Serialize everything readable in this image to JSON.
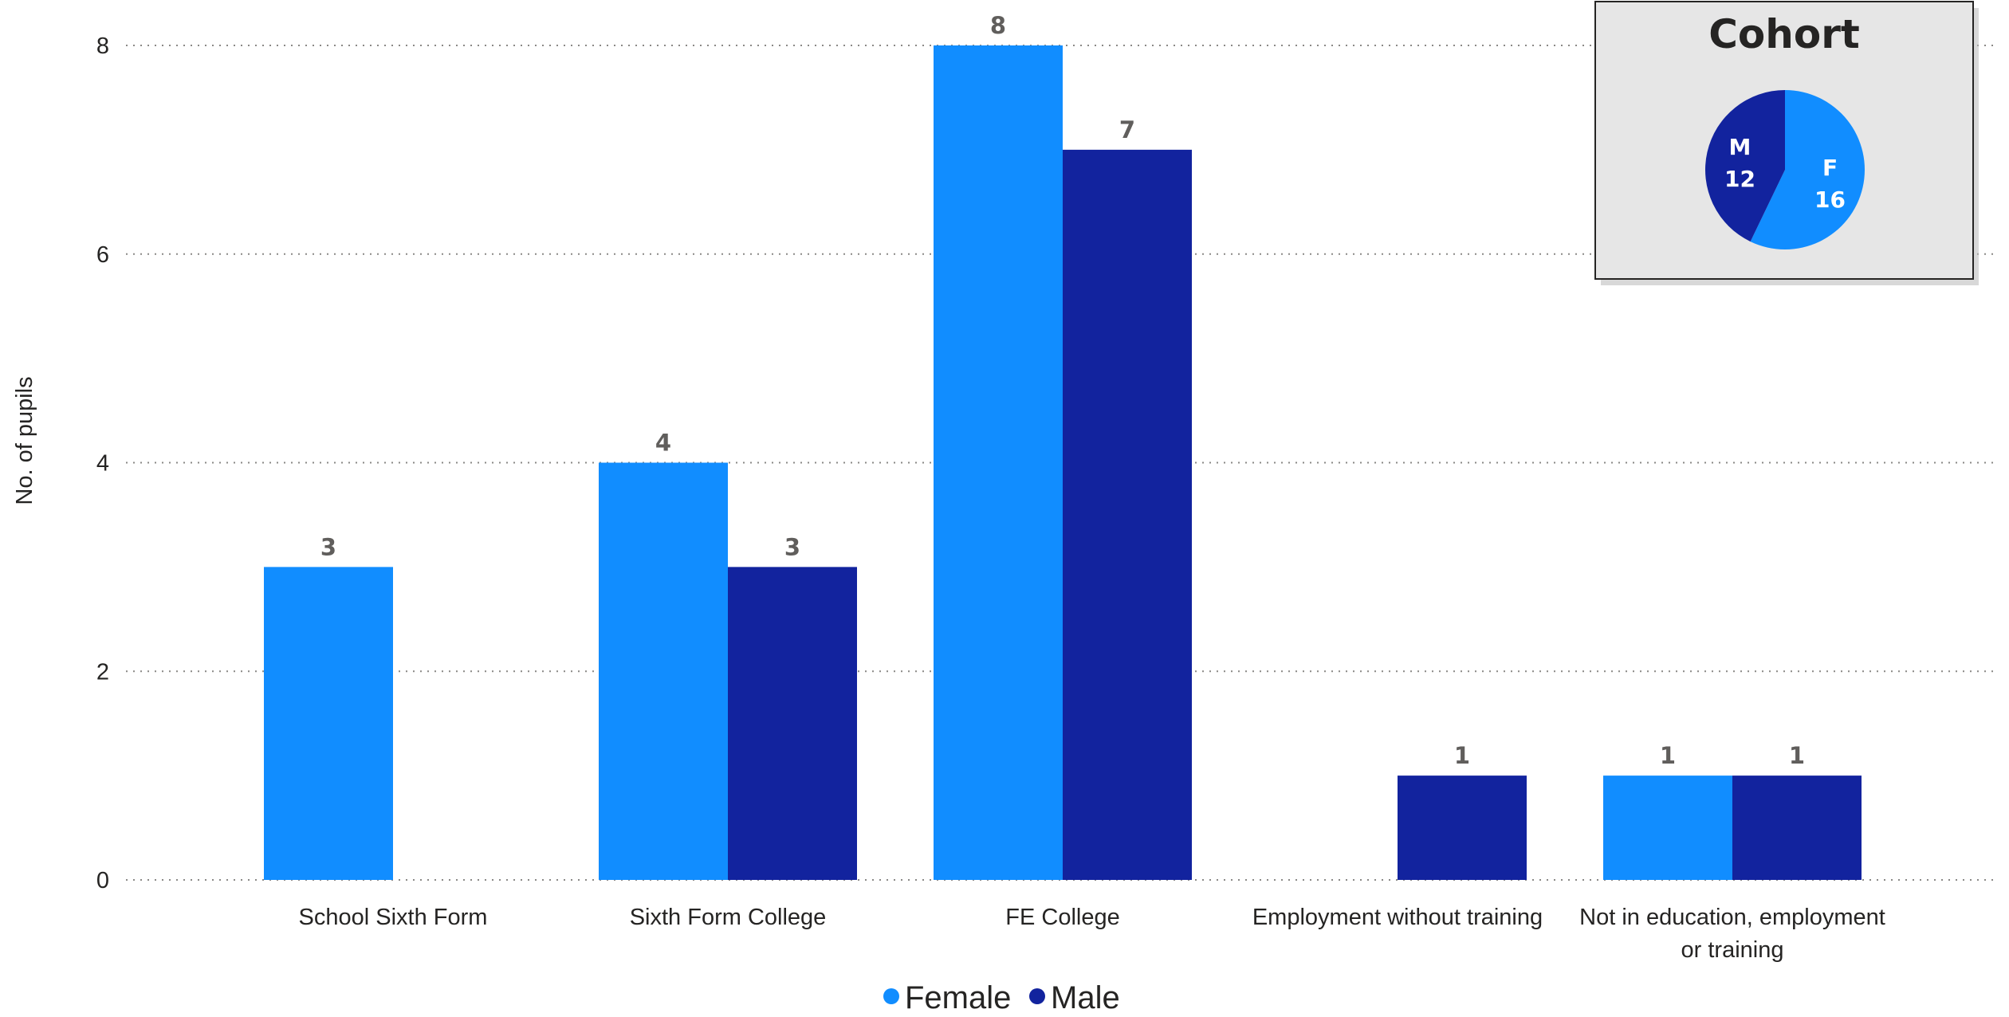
{
  "chart_data": [
    {
      "type": "bar",
      "categories": [
        [
          "School Sixth Form"
        ],
        [
          "Sixth Form College"
        ],
        [
          "FE College"
        ],
        [
          "Employment without training"
        ],
        [
          "Not in education, employment",
          "or training"
        ]
      ],
      "series": [
        {
          "name": "Female",
          "color": "#118dff",
          "values": [
            3,
            4,
            8,
            null,
            1
          ]
        },
        {
          "name": "Male",
          "color": "#12239e",
          "values": [
            null,
            3,
            7,
            1,
            1
          ]
        }
      ],
      "ylabel": "No. of pupils",
      "ylim": [
        0,
        8
      ],
      "yticks": [
        0,
        2,
        4,
        6,
        8
      ],
      "grid": true,
      "legend": "bottom"
    },
    {
      "type": "pie",
      "title": "Cohort",
      "slices": [
        {
          "label": "F",
          "value": 16,
          "color": "#118dff"
        },
        {
          "label": "M",
          "value": 12,
          "color": "#12239e"
        }
      ]
    }
  ]
}
